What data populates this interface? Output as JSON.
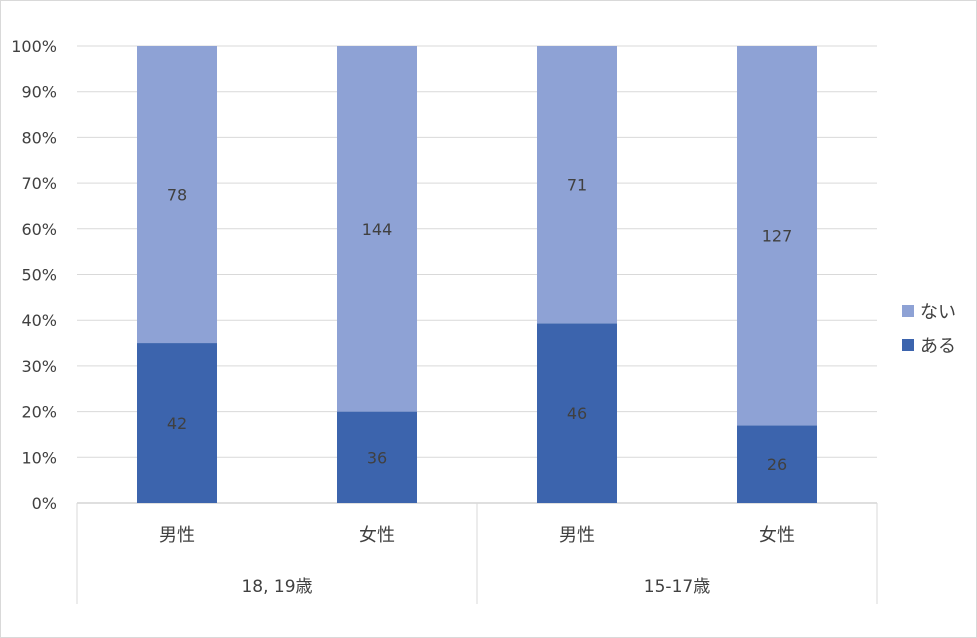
{
  "chart_data": {
    "type": "bar",
    "stacked": "percent",
    "categories": [
      "男性",
      "女性",
      "男性",
      "女性"
    ],
    "groups": [
      {
        "label": "18, 19歳",
        "span": 2
      },
      {
        "label": "15-17歳",
        "span": 2
      }
    ],
    "series": [
      {
        "name": "ある",
        "color": "#3c64ad",
        "values": [
          42,
          36,
          46,
          26
        ]
      },
      {
        "name": "ない",
        "color": "#8ea2d5",
        "values": [
          78,
          144,
          71,
          127
        ]
      }
    ],
    "y_ticks": [
      "0%",
      "10%",
      "20%",
      "30%",
      "40%",
      "50%",
      "60%",
      "70%",
      "80%",
      "90%",
      "100%"
    ],
    "ylim": [
      0,
      100
    ],
    "grid": true,
    "legend": "right"
  }
}
